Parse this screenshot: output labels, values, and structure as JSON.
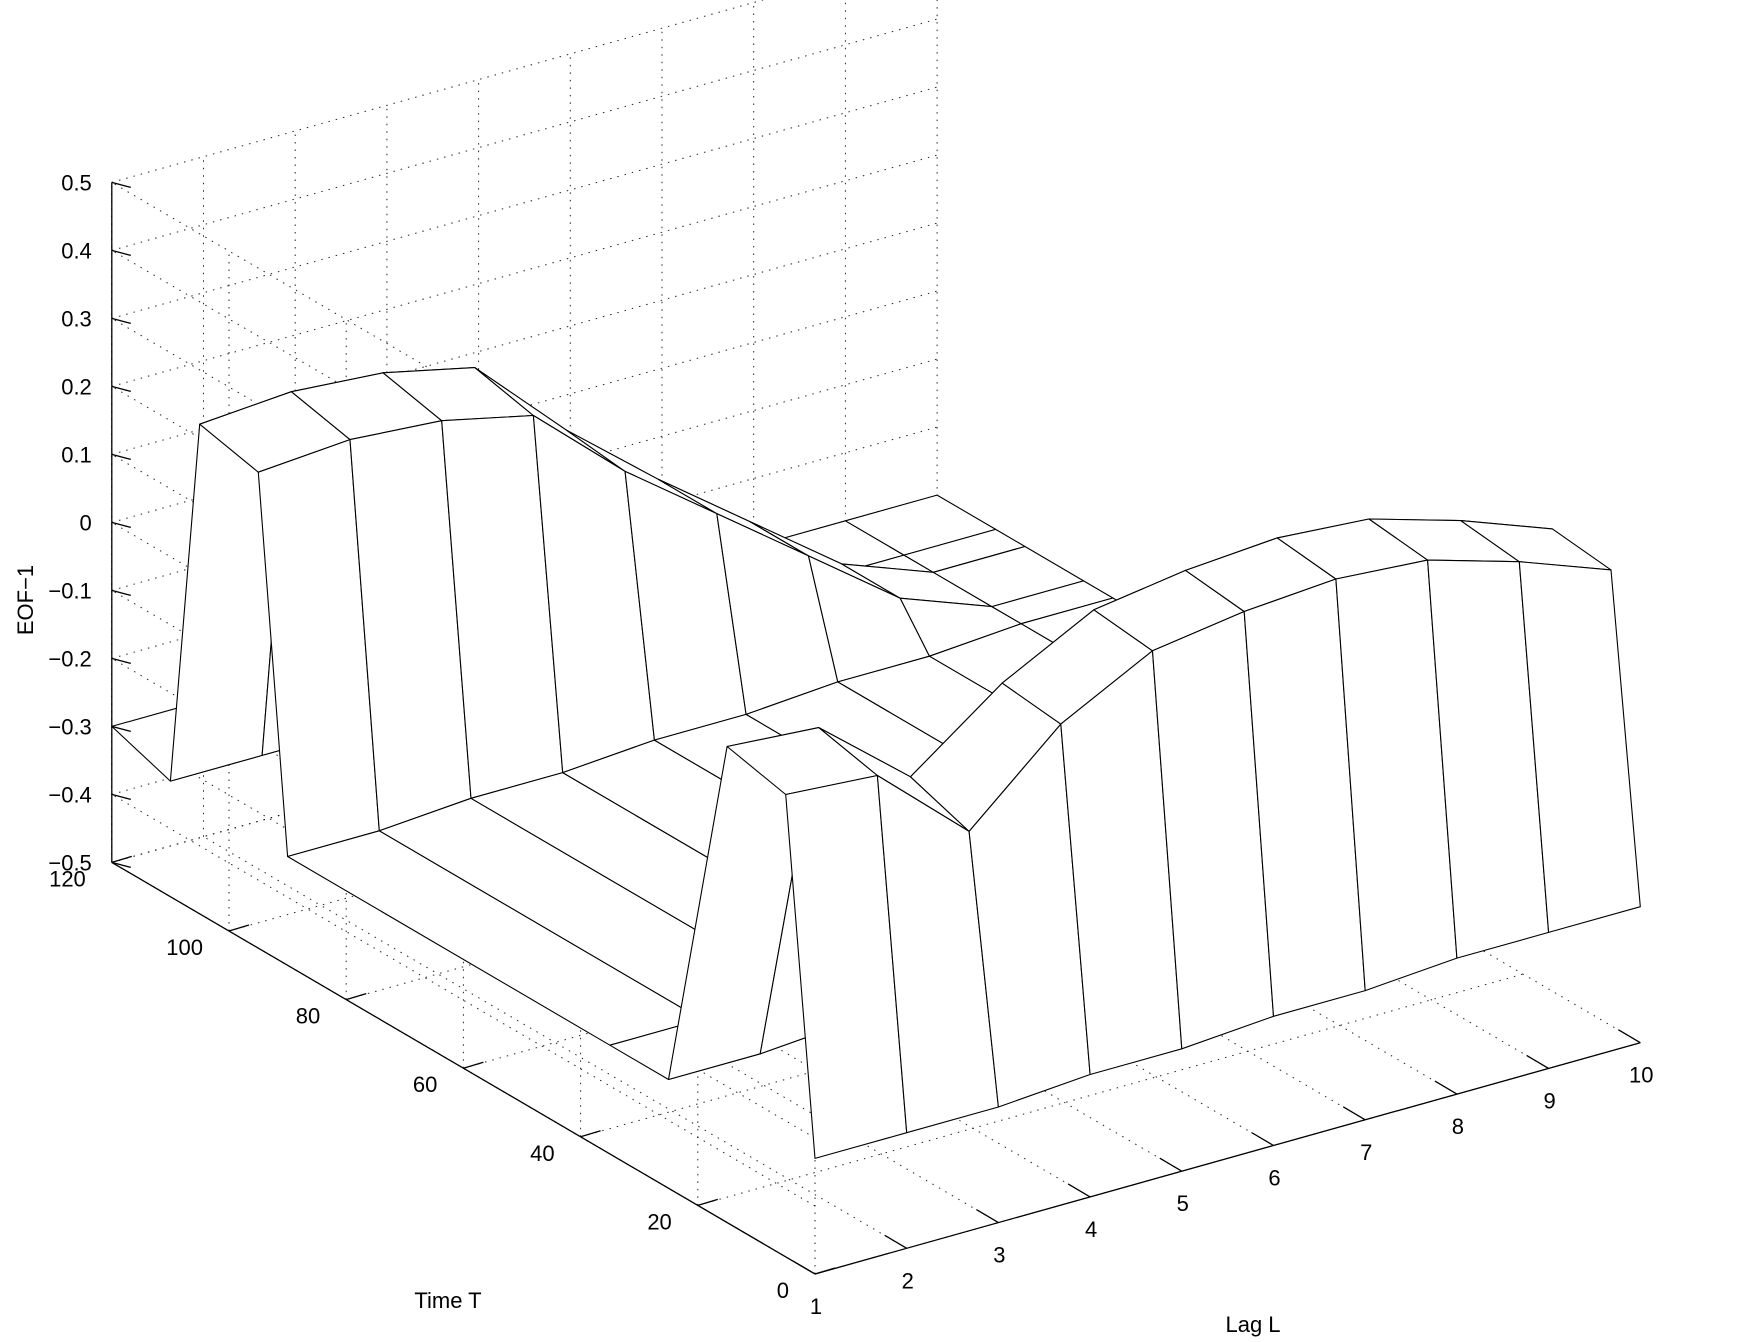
{
  "chart_data": {
    "type": "surface",
    "xlabel": "Lag L",
    "ylabel": "Time T",
    "zlabel": "EOF−1",
    "xlim": [
      1,
      10
    ],
    "ylim": [
      0,
      120
    ],
    "zlim": [
      -0.5,
      0.5
    ],
    "x_ticks": [
      "1",
      "2",
      "3",
      "4",
      "5",
      "6",
      "7",
      "8",
      "9",
      "10"
    ],
    "y_ticks": [
      "0",
      "20",
      "40",
      "60",
      "80",
      "100",
      "120"
    ],
    "z_ticks": [
      "−0.5",
      "−0.4",
      "−0.3",
      "−0.2",
      "−0.1",
      "0",
      "0.1",
      "0.2",
      "0.3",
      "0.4",
      "0.5"
    ],
    "grid": true,
    "render_style": "mesh",
    "series": [
      {
        "x": [
          1,
          2,
          3,
          4,
          5,
          6,
          7,
          8,
          9,
          10
        ],
        "profiles": [
          {
            "t": 0,
            "z": [
              -0.33,
              -0.33,
              -0.33,
              -0.32,
              -0.32,
              -0.31,
              -0.31,
              -0.3,
              -0.3,
              -0.3
            ]
          },
          {
            "t": 5,
            "z": [
              0.18,
              0.17,
              0.05,
              0.17,
              0.24,
              0.26,
              0.27,
              0.26,
              0.22,
              0.17
            ]
          },
          {
            "t": 15,
            "z": [
              0.2,
              0.19,
              0.08,
              0.18,
              0.25,
              0.27,
              0.28,
              0.27,
              0.23,
              0.18
            ]
          },
          {
            "t": 25,
            "z": [
              -0.34,
              -0.34,
              -0.33,
              -0.33,
              -0.32,
              -0.32,
              -0.31,
              -0.31,
              -0.3,
              -0.3
            ]
          },
          {
            "t": 35,
            "z": [
              -0.34,
              -0.34,
              -0.33,
              -0.33,
              -0.32,
              -0.32,
              -0.31,
              -0.31,
              -0.3,
              -0.3
            ]
          },
          {
            "t": 90,
            "z": [
              -0.34,
              -0.34,
              -0.33,
              -0.33,
              -0.32,
              -0.32,
              -0.31,
              -0.31,
              -0.3,
              -0.3
            ]
          },
          {
            "t": 95,
            "z": [
              0.2,
              0.21,
              0.2,
              0.17,
              0.05,
              -0.05,
              -0.15,
              -0.25,
              -0.3,
              -0.3
            ]
          },
          {
            "t": 105,
            "z": [
              0.22,
              0.23,
              0.22,
              0.19,
              0.06,
              -0.05,
              -0.15,
              -0.25,
              -0.3,
              -0.3
            ]
          },
          {
            "t": 110,
            "z": [
              -0.33,
              -0.33,
              -0.33,
              -0.32,
              -0.32,
              -0.31,
              -0.31,
              -0.3,
              -0.3,
              -0.3
            ]
          },
          {
            "t": 120,
            "z": [
              -0.3,
              -0.3,
              -0.3,
              -0.3,
              -0.3,
              -0.3,
              -0.3,
              -0.3,
              -0.3,
              -0.3
            ]
          }
        ]
      }
    ]
  }
}
